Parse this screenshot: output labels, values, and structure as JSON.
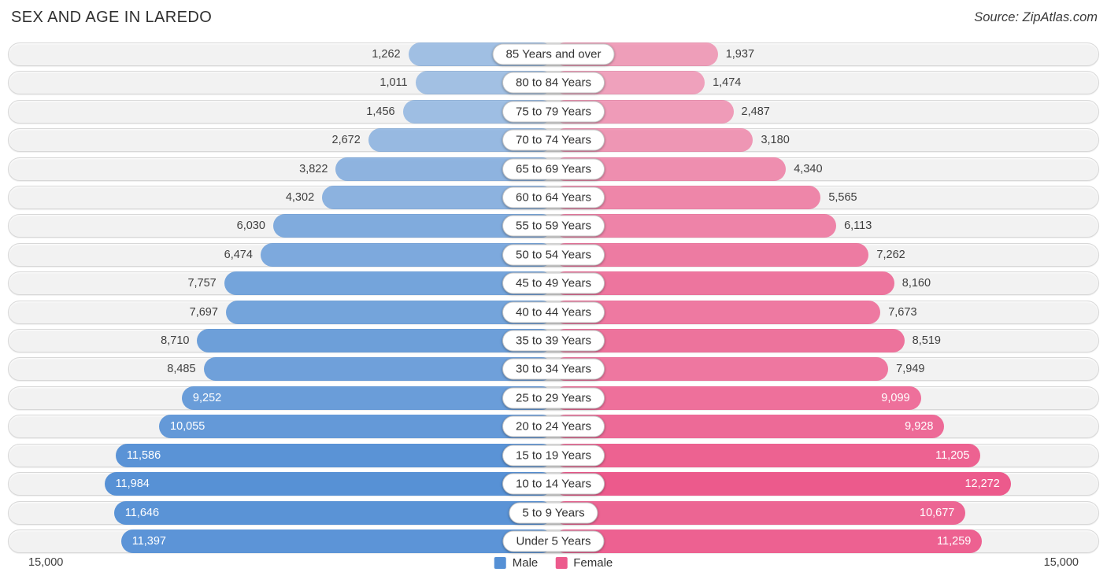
{
  "header": {
    "title": "SEX AND AGE IN LAREDO",
    "source": "Source: ZipAtlas.com"
  },
  "chart_data": {
    "type": "bar",
    "subtype": "population-pyramid-horizontal",
    "title": "SEX AND AGE IN LAREDO",
    "categories": [
      "85 Years and over",
      "80 to 84 Years",
      "75 to 79 Years",
      "70 to 74 Years",
      "65 to 69 Years",
      "60 to 64 Years",
      "55 to 59 Years",
      "50 to 54 Years",
      "45 to 49 Years",
      "40 to 44 Years",
      "35 to 39 Years",
      "30 to 34 Years",
      "25 to 29 Years",
      "20 to 24 Years",
      "15 to 19 Years",
      "10 to 14 Years",
      "5 to 9 Years",
      "Under 5 Years"
    ],
    "series": [
      {
        "name": "Male",
        "color": "#5590d5",
        "values": [
          1262,
          1011,
          1456,
          2672,
          3822,
          4302,
          6030,
          6474,
          7757,
          7697,
          8710,
          8485,
          9252,
          10055,
          11586,
          11984,
          11646,
          11397
        ]
      },
      {
        "name": "Female",
        "color": "#ec5a8c",
        "values": [
          1937,
          1474,
          2487,
          3180,
          4340,
          5565,
          6113,
          7262,
          8160,
          7673,
          8519,
          7949,
          9099,
          9928,
          11205,
          12272,
          10677,
          11259
        ]
      }
    ],
    "axis": {
      "max": 15000,
      "left_tick_label": "15,000",
      "right_tick_label": "15,000"
    },
    "legend": {
      "position": "bottom-center",
      "entries": [
        "Male",
        "Female"
      ]
    },
    "grid": false
  },
  "footer": {
    "axis_left": "15,000",
    "axis_right": "15,000",
    "legend_male": "Male",
    "legend_female": "Female"
  }
}
